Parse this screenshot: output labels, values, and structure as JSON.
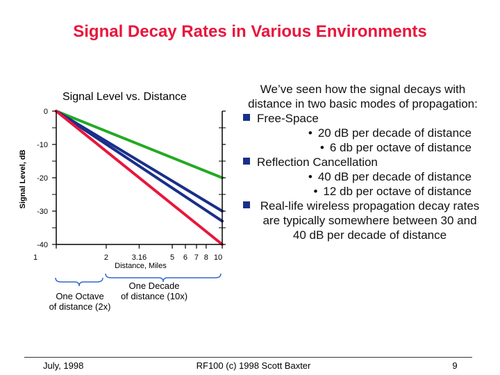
{
  "slide": {
    "title": "Signal Decay Rates in Various Environments",
    "footer_left": "July, 1998",
    "footer_center": "RF100 (c) 1998 Scott Baxter",
    "footer_right": "9"
  },
  "annotations": {
    "octave_line1": "One Octave",
    "octave_line2": "of distance (2x)",
    "decade_line1": "One Decade",
    "decade_line2": "of distance (10x)"
  },
  "right_text": {
    "intro": "We’ve seen how the signal decays with distance in two basic modes of propagation:",
    "bullet1": "Free-Space",
    "bullet1_sub1": "20 dB per decade of distance",
    "bullet1_sub2": "6 db per octave of distance",
    "bullet2": "Reflection Cancellation",
    "bullet2_sub1": "40 dB per decade of distance",
    "bullet2_sub2": "12 db per octave of distance",
    "bullet3": "Real-life wireless propagation decay rates are typically somewhere between 30 and 40 dB per decade of distance"
  },
  "chart_data": {
    "type": "line",
    "title": "Signal Level vs. Distance",
    "xlabel": "Distance, Miles",
    "ylabel": "Signal Level, dB",
    "x_scale": "log",
    "xlim": [
      1,
      10
    ],
    "ylim": [
      -40,
      0
    ],
    "x_ticks": [
      1,
      2,
      3.16,
      5,
      6,
      7,
      8,
      10
    ],
    "x_tick_labels": [
      "1",
      "2",
      "3.16",
      "5",
      "6",
      "7",
      "8",
      "10"
    ],
    "y_ticks": [
      0,
      -10,
      -20,
      -30,
      -40
    ],
    "y_tick_labels": [
      "0",
      "-10",
      "-20",
      "-30",
      "-40"
    ],
    "colors": {
      "green": "#22aa22",
      "blue": "#1a2f8a",
      "red": "#e8163c",
      "axis": "#000000"
    },
    "series": [
      {
        "color": "green",
        "x": [
          1,
          10
        ],
        "y": [
          0,
          -20
        ]
      },
      {
        "color": "blue",
        "x": [
          1,
          10
        ],
        "y": [
          0,
          -30
        ]
      },
      {
        "color": "blue",
        "x": [
          1,
          10
        ],
        "y": [
          0,
          -33
        ]
      },
      {
        "color": "red",
        "x": [
          1,
          10
        ],
        "y": [
          0,
          -40
        ]
      }
    ]
  }
}
